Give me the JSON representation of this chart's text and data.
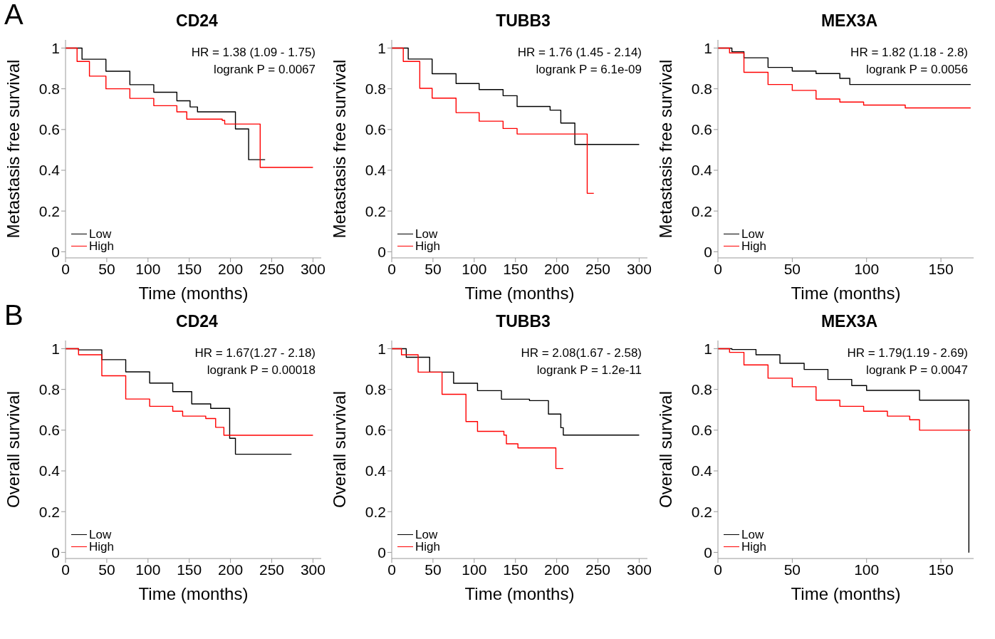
{
  "chart_data": [
    {
      "type": "step",
      "title": "CD24",
      "xlabel": "Time (months)",
      "ylabel": "Metastasis free survival",
      "annotations": [
        "A",
        "HR = 1.38 (1.09 - 1.75)",
        "logrank P = 0.0067"
      ],
      "xlim": [
        0,
        310
      ],
      "xticks": [
        0,
        50,
        100,
        150,
        200,
        250,
        300
      ],
      "ylim": [
        -0.03,
        1.04
      ],
      "yticks": [
        0,
        0.2,
        0.4,
        0.6,
        0.8,
        1
      ],
      "legend": "bottom left",
      "grid": false,
      "series": [
        {
          "name": "Low",
          "color": "#000000",
          "x": [
            0,
            20,
            49,
            78,
            107,
            135,
            151,
            160,
            206,
            222,
            242
          ],
          "values": [
            1,
            0.945,
            0.886,
            0.82,
            0.783,
            0.741,
            0.711,
            0.687,
            0.603,
            0.452,
            0.452
          ]
        },
        {
          "name": "High",
          "color": "#ff0000",
          "x": [
            0,
            14,
            29,
            49,
            78,
            107,
            135,
            147,
            190,
            193,
            236,
            300
          ],
          "values": [
            1,
            0.934,
            0.862,
            0.8,
            0.753,
            0.717,
            0.687,
            0.651,
            0.645,
            0.627,
            0.414,
            0.414
          ]
        }
      ]
    },
    {
      "type": "step",
      "title": "TUBB3",
      "xlabel": "Time (months)",
      "ylabel": "Metastasis free survival",
      "annotations": [
        "HR = 1.76 (1.45 - 2.14)",
        "logrank P = 6.1e-09"
      ],
      "xlim": [
        0,
        310
      ],
      "xticks": [
        0,
        50,
        100,
        150,
        200,
        250,
        300
      ],
      "ylim": [
        -0.03,
        1.04
      ],
      "yticks": [
        0,
        0.2,
        0.4,
        0.6,
        0.8,
        1
      ],
      "legend": "bottom left",
      "grid": false,
      "series": [
        {
          "name": "Low",
          "color": "#000000",
          "x": [
            0,
            20,
            49,
            78,
            106,
            135,
            152,
            192,
            205,
            222,
            300
          ],
          "values": [
            1,
            0.946,
            0.874,
            0.826,
            0.796,
            0.766,
            0.713,
            0.695,
            0.632,
            0.527,
            0.527
          ]
        },
        {
          "name": "High",
          "color": "#ff0000",
          "x": [
            0,
            14,
            34,
            49,
            78,
            106,
            135,
            152,
            237,
            245
          ],
          "values": [
            1,
            0.934,
            0.802,
            0.754,
            0.683,
            0.641,
            0.605,
            0.578,
            0.287,
            0.287
          ]
        }
      ]
    },
    {
      "type": "step",
      "title": "MEX3A",
      "xlabel": "Time (months)",
      "ylabel": "Metastasis free survival",
      "annotations": [
        "HR = 1.82 (1.18 - 2.8)",
        "logrank P = 0.0056"
      ],
      "xlim": [
        0,
        172
      ],
      "xticks": [
        0,
        50,
        100,
        150
      ],
      "ylim": [
        -0.03,
        1.04
      ],
      "yticks": [
        0,
        0.2,
        0.4,
        0.6,
        0.8,
        1
      ],
      "legend": "bottom left",
      "grid": false,
      "series": [
        {
          "name": "Low",
          "color": "#000000",
          "x": [
            0,
            9.4,
            17.5,
            33.7,
            50,
            66,
            82,
            88.7,
            170
          ],
          "values": [
            1,
            0.982,
            0.952,
            0.905,
            0.887,
            0.875,
            0.851,
            0.821,
            0.821
          ]
        },
        {
          "name": "High",
          "color": "#ff0000",
          "x": [
            0,
            7.8,
            17.5,
            33.7,
            50,
            66,
            82,
            98,
            126,
            170
          ],
          "values": [
            1,
            0.976,
            0.881,
            0.821,
            0.792,
            0.75,
            0.735,
            0.72,
            0.706,
            0.706
          ]
        }
      ]
    },
    {
      "type": "step",
      "title": "CD24",
      "xlabel": "Time (months)",
      "ylabel": "Overall survival",
      "annotations": [
        "B",
        "HR = 1.67(1.27 - 2.18)",
        "logrank P = 0.00018"
      ],
      "xlim": [
        0,
        310
      ],
      "xticks": [
        0,
        50,
        100,
        150,
        200,
        250,
        300
      ],
      "ylim": [
        -0.03,
        1.04
      ],
      "yticks": [
        0,
        0.2,
        0.4,
        0.6,
        0.8,
        1
      ],
      "legend": "bottom left",
      "grid": false,
      "series": [
        {
          "name": "Low",
          "color": "#000000",
          "x": [
            0,
            15.8,
            44,
            73,
            102,
            130,
            153,
            176,
            199,
            206,
            274
          ],
          "values": [
            1,
            0.994,
            0.946,
            0.886,
            0.831,
            0.789,
            0.729,
            0.707,
            0.56,
            0.482,
            0.482
          ]
        },
        {
          "name": "High",
          "color": "#ff0000",
          "x": [
            0,
            15.8,
            44,
            73,
            102,
            130,
            142,
            170,
            182,
            192,
            300
          ],
          "values": [
            1,
            0.97,
            0.867,
            0.753,
            0.717,
            0.693,
            0.669,
            0.657,
            0.614,
            0.575,
            0.575
          ]
        }
      ]
    },
    {
      "type": "step",
      "title": "TUBB3",
      "xlabel": "Time (months)",
      "ylabel": "Overall survival",
      "annotations": [
        "HR = 2.08(1.67 - 2.58)",
        "logrank P = 1.2e-11"
      ],
      "xlim": [
        0,
        310
      ],
      "xticks": [
        0,
        50,
        100,
        150,
        200,
        250,
        300
      ],
      "ylim": [
        -0.03,
        1.04
      ],
      "yticks": [
        0,
        0.2,
        0.4,
        0.6,
        0.8,
        1
      ],
      "legend": "bottom left",
      "grid": false,
      "series": [
        {
          "name": "Low",
          "color": "#000000",
          "x": [
            0,
            17.6,
            46,
            75,
            104,
            133,
            167,
            190,
            205,
            208,
            300
          ],
          "values": [
            1,
            0.958,
            0.885,
            0.83,
            0.794,
            0.752,
            0.745,
            0.679,
            0.612,
            0.576,
            0.576
          ]
        },
        {
          "name": "High",
          "color": "#ff0000",
          "x": [
            0,
            11.8,
            32,
            61,
            90,
            104,
            136,
            139,
            153,
            199,
            208
          ],
          "values": [
            1,
            0.97,
            0.885,
            0.776,
            0.642,
            0.594,
            0.576,
            0.533,
            0.513,
            0.412,
            0.412
          ]
        }
      ]
    },
    {
      "type": "step",
      "title": "MEX3A",
      "xlabel": "Time (months)",
      "ylabel": "Overall survival",
      "annotations": [
        "HR = 1.79(1.19 - 2.69)",
        "logrank P = 0.0047"
      ],
      "xlim": [
        0,
        172
      ],
      "xticks": [
        0,
        50,
        100,
        150
      ],
      "ylim": [
        -0.03,
        1.04
      ],
      "yticks": [
        0,
        0.2,
        0.4,
        0.6,
        0.8,
        1
      ],
      "legend": "bottom left",
      "grid": false,
      "series": [
        {
          "name": "Low",
          "color": "#000000",
          "x": [
            0,
            9.4,
            25.6,
            41.7,
            58,
            74,
            90,
            100,
            135.6,
            168.8,
            168.9
          ],
          "values": [
            1,
            0.996,
            0.97,
            0.928,
            0.898,
            0.849,
            0.819,
            0.795,
            0.747,
            0,
            0
          ]
        },
        {
          "name": "High",
          "color": "#ff0000",
          "x": [
            0,
            7.8,
            17.5,
            33.7,
            50,
            66,
            82,
            98,
            114,
            129,
            135.6,
            170
          ],
          "values": [
            1,
            0.982,
            0.92,
            0.855,
            0.813,
            0.747,
            0.717,
            0.693,
            0.669,
            0.651,
            0.6,
            0.6
          ]
        }
      ]
    }
  ]
}
